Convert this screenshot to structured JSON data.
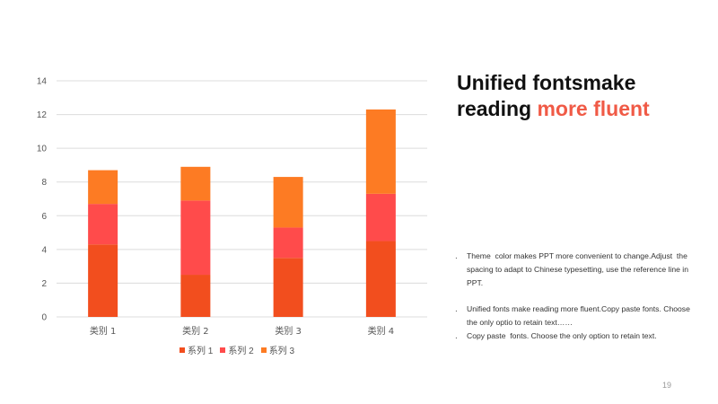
{
  "slide": {
    "title_line1": "Unified fontsmake",
    "title_line2_plain": "reading ",
    "title_line2_accent": "more fluent",
    "bullets": [
      "Theme  color makes PPT more convenient to change.Adjust  the spacing to adapt to Chinese typesetting, use the reference line in PPT.",
      "Unified fonts make reading more fluent.Copy paste fonts. Choose the only optio to retain text……",
      "Copy paste  fonts. Choose the only option to retain text."
    ],
    "page_number": "19",
    "accent_color": "#f05a46"
  },
  "chart_data": {
    "type": "bar",
    "stacked": true,
    "categories": [
      "类别 1",
      "类别 2",
      "类别 3",
      "类别 4"
    ],
    "series": [
      {
        "name": "系列 1",
        "color": "#f24e1e",
        "values": [
          4.3,
          2.5,
          3.5,
          4.5
        ]
      },
      {
        "name": "系列 2",
        "color": "#ff4b4b",
        "values": [
          2.4,
          4.4,
          1.8,
          2.8
        ]
      },
      {
        "name": "系列 3",
        "color": "#fd7b23",
        "values": [
          2.0,
          2.0,
          3.0,
          5.0
        ]
      }
    ],
    "ylim": [
      0,
      14
    ],
    "yticks": [
      0,
      2,
      4,
      6,
      8,
      10,
      12,
      14
    ],
    "grid": true,
    "legend": "bottom"
  }
}
